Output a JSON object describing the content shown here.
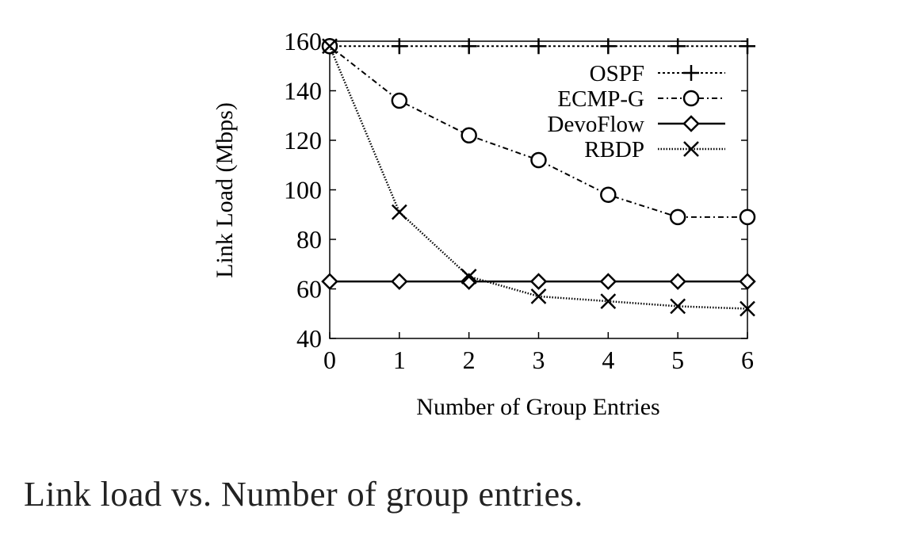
{
  "chart_data": {
    "type": "line",
    "title": "",
    "xlabel": "Number of Group Entries",
    "ylabel": "Link Load (Mbps)",
    "x": [
      0,
      1,
      2,
      3,
      4,
      5,
      6
    ],
    "xlim": [
      0,
      6
    ],
    "ylim": [
      40,
      160
    ],
    "xticks": [
      0,
      1,
      2,
      3,
      4,
      5,
      6
    ],
    "yticks": [
      40,
      60,
      80,
      100,
      120,
      140,
      160
    ],
    "grid": false,
    "legend_position": "top-right",
    "series": [
      {
        "name": "OSPF",
        "marker": "plus",
        "dash": "dotted",
        "values": [
          158,
          158,
          158,
          158,
          158,
          158,
          158
        ]
      },
      {
        "name": "ECMP-G",
        "marker": "circle",
        "dash": "dashdot",
        "values": [
          158,
          136,
          122,
          112,
          98,
          89,
          89
        ]
      },
      {
        "name": "DevoFlow",
        "marker": "diamond",
        "dash": "solid",
        "values": [
          63,
          63,
          63,
          63,
          63,
          63,
          63
        ]
      },
      {
        "name": "RBDP",
        "marker": "cross",
        "dash": "densedot",
        "values": [
          158,
          91,
          65,
          57,
          55,
          53,
          52
        ]
      }
    ]
  },
  "caption": "Link load vs. Number of group entries."
}
